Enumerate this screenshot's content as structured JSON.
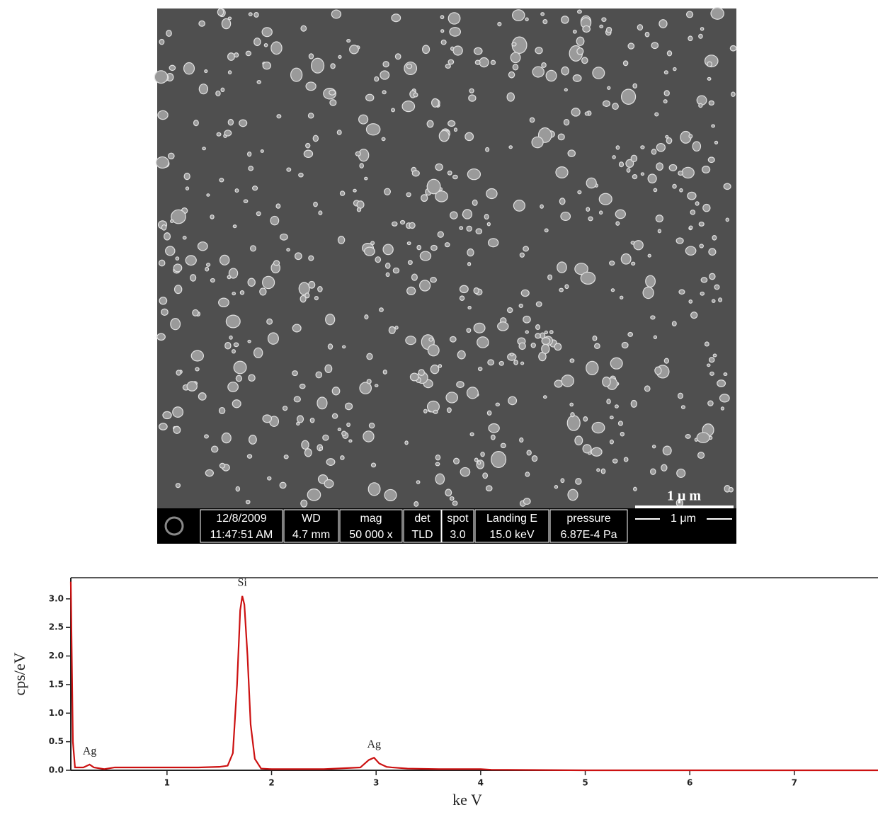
{
  "sem_image": {
    "scale_bar_label": "1 μ m",
    "info_bar": [
      {
        "header": "12/8/2009",
        "value": "11:47:51 AM"
      },
      {
        "header": "WD",
        "value": "4.7 mm"
      },
      {
        "header": "mag",
        "value": "50 000 x"
      },
      {
        "header": "det",
        "value": "TLD"
      },
      {
        "header": "spot",
        "value": "3.0"
      },
      {
        "header": "Landing E",
        "value": "15.0 keV"
      },
      {
        "header": "pressure",
        "value": "6.87E-4 Pa"
      }
    ],
    "info_scale_label": "1 μm"
  },
  "chart_data": {
    "type": "line",
    "xlabel": "ke V",
    "ylabel": "cps/eV",
    "color": "#cc1111",
    "x": [
      0.08,
      0.1,
      0.12,
      0.2,
      0.26,
      0.3,
      0.4,
      0.5,
      0.7,
      1.0,
      1.3,
      1.5,
      1.58,
      1.63,
      1.67,
      1.7,
      1.72,
      1.74,
      1.77,
      1.8,
      1.84,
      1.9,
      2.0,
      2.5,
      2.85,
      2.93,
      2.98,
      3.03,
      3.1,
      3.15,
      3.3,
      3.6,
      4.0,
      4.1,
      5.0,
      7.8
    ],
    "values": [
      3.3,
      0.5,
      0.05,
      0.05,
      0.1,
      0.05,
      0.02,
      0.05,
      0.05,
      0.05,
      0.05,
      0.06,
      0.08,
      0.3,
      1.5,
      2.8,
      3.05,
      2.9,
      2.0,
      0.8,
      0.2,
      0.03,
      0.02,
      0.02,
      0.05,
      0.18,
      0.22,
      0.12,
      0.06,
      0.05,
      0.03,
      0.02,
      0.02,
      0.01,
      0.0,
      0.0
    ],
    "xlim": [
      0.08,
      7.8
    ],
    "ylim": [
      0,
      3.37
    ],
    "xticks": [
      1,
      2,
      3,
      4,
      5,
      6,
      7
    ],
    "yticks": [
      {
        "value": 0,
        "label": "0.0"
      },
      0.5,
      {
        "value": 1,
        "label": "1.0"
      },
      1.5,
      {
        "value": 2,
        "label": "2.0"
      },
      2.5,
      {
        "value": 3,
        "label": "3.0"
      }
    ],
    "annotations": [
      {
        "label": "Ag",
        "x": 0.26
      },
      {
        "label": "Si",
        "x": 1.72
      },
      {
        "label": "Ag",
        "x": 2.98
      }
    ]
  }
}
